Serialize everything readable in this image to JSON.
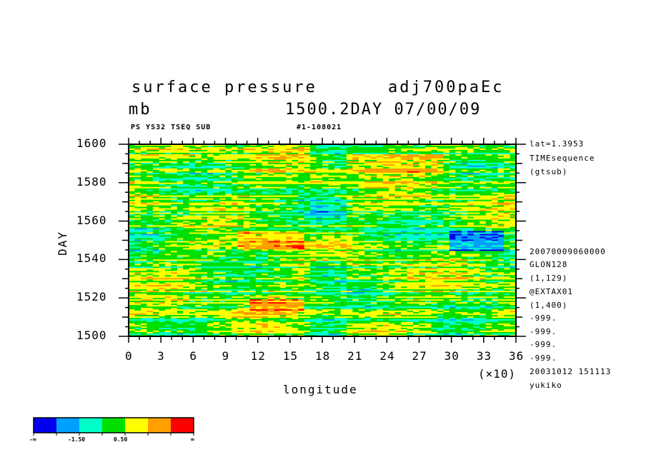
{
  "chart_data": {
    "type": "heatmap",
    "title_left": "surface pressure",
    "title_right": "adj700paEc",
    "units": "mb",
    "time_info": "1500.2DAY 07/00/09",
    "subtitle_left": "PS YS32 TSEQ SUB",
    "subtitle_right": "#1-108021",
    "xlabel": "longitude",
    "ylabel": "DAY",
    "x_multiplier": "(×10)",
    "xlim": [
      0,
      36
    ],
    "ylim": [
      1500,
      1600
    ],
    "x_ticks": [
      "0",
      "3",
      "6",
      "9",
      "12",
      "15",
      "18",
      "21",
      "24",
      "27",
      "30",
      "33",
      "36"
    ],
    "y_ticks": [
      "1500",
      "1520",
      "1540",
      "1560",
      "1580",
      "1600"
    ],
    "colorbar": {
      "colors": [
        "#0000ee",
        "#00a0ff",
        "#00ffc8",
        "#00e000",
        "#ffff00",
        "#ffa000",
        "#ff0000"
      ],
      "labels": [
        "-∞",
        "-1.50",
        "0.50",
        "∞"
      ]
    },
    "info_right": {
      "lat": "lat=1.3953",
      "seq": "TIMEsequence",
      "src": "(gtsub)",
      "date": "20070009060000",
      "glon": "GLON128",
      "glon_range": "(1,129)",
      "ax": "@EXTAX01",
      "ax_range": "(1,400)",
      "m1": "-999.",
      "m2": "-999.",
      "m3": "-999.",
      "m4": "-999.",
      "stamp": "20031012 151113",
      "user": "yukiko"
    }
  }
}
